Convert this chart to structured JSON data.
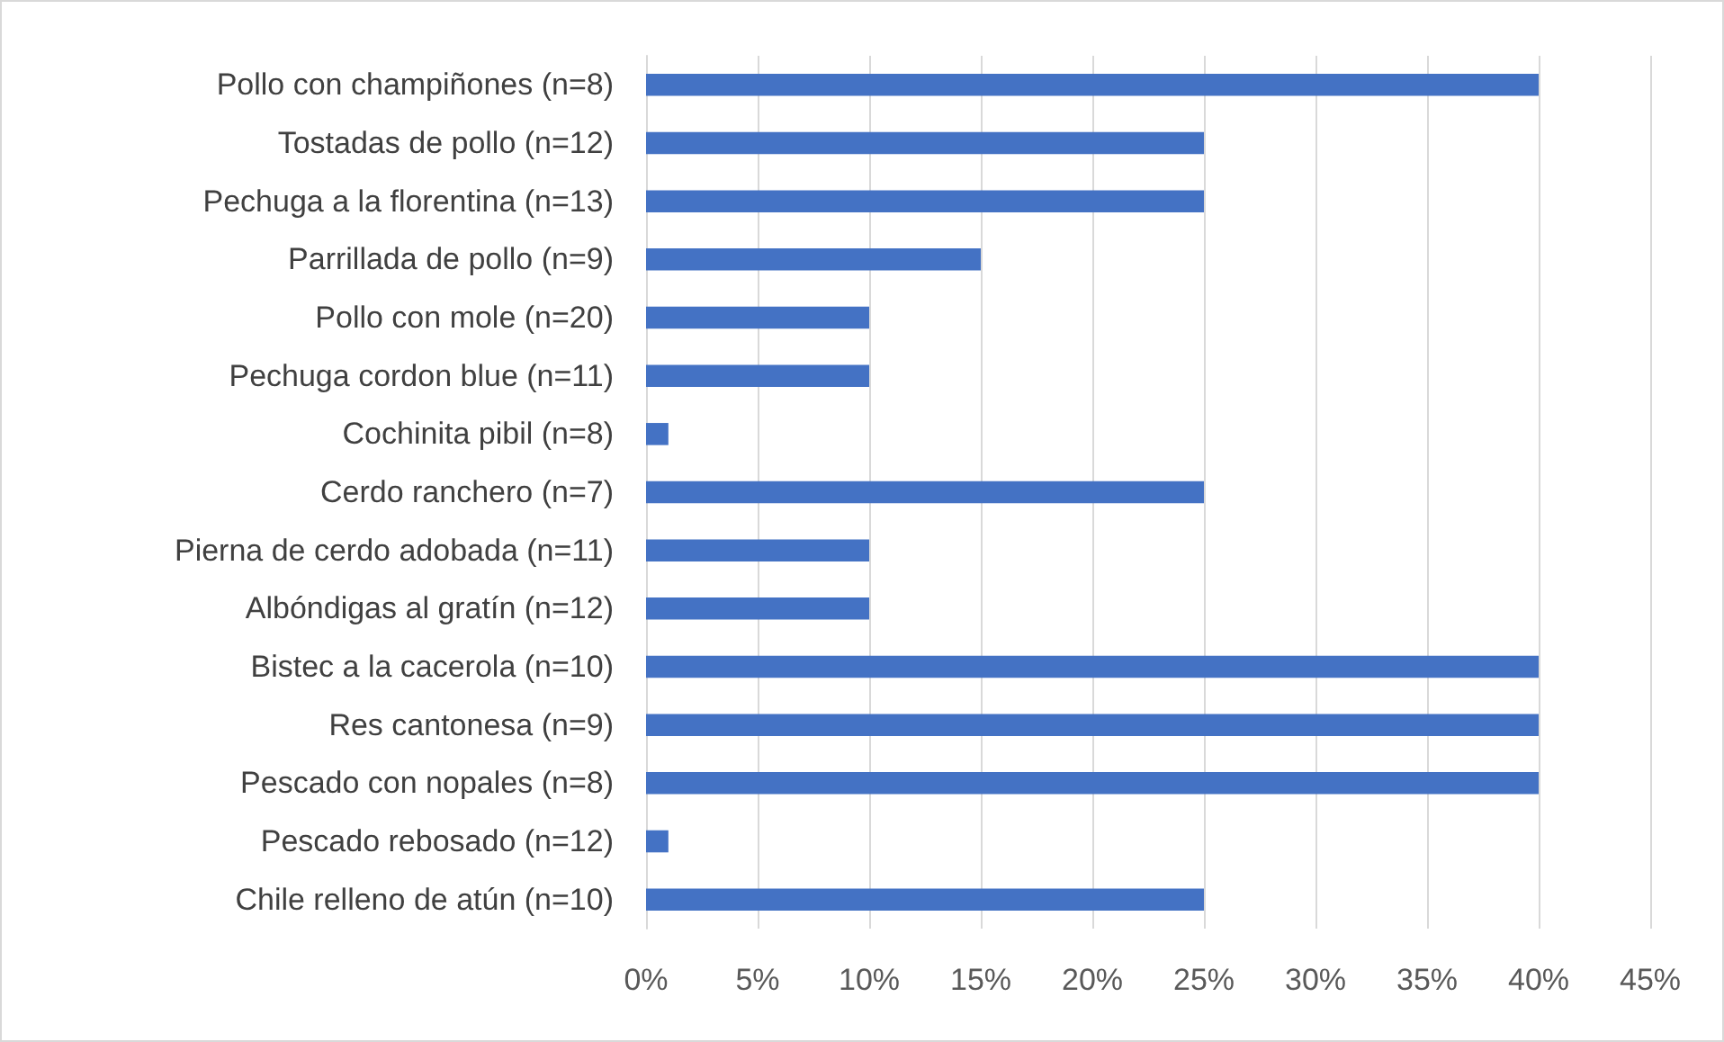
{
  "chart_data": {
    "type": "bar",
    "orientation": "horizontal",
    "categories": [
      "Pollo con champiñones (n=8)",
      "Tostadas de pollo (n=12)",
      "Pechuga a la florentina (n=13)",
      "Parrillada de pollo (n=9)",
      "Pollo con mole (n=20)",
      "Pechuga cordon blue (n=11)",
      "Cochinita pibil (n=8)",
      "Cerdo ranchero (n=7)",
      "Pierna de cerdo adobada (n=11)",
      "Albóndigas al gratín (n=12)",
      "Bistec a la cacerola (n=10)",
      "Res cantonesa (n=9)",
      "Pescado con nopales (n=8)",
      "Pescado rebosado (n=12)",
      "Chile relleno de atún (n=10)"
    ],
    "values": [
      40,
      25,
      25,
      15,
      10,
      10,
      1,
      25,
      10,
      10,
      40,
      40,
      40,
      1,
      25
    ],
    "color": "#4472c4",
    "xlim": [
      0,
      45
    ],
    "xticks": [
      {
        "value": 0,
        "label": "0%"
      },
      {
        "value": 5,
        "label": "5%"
      },
      {
        "value": 10,
        "label": "10%"
      },
      {
        "value": 15,
        "label": "15%"
      },
      {
        "value": 20,
        "label": "20%"
      },
      {
        "value": 25,
        "label": "25%"
      },
      {
        "value": 30,
        "label": "30%"
      },
      {
        "value": 35,
        "label": "35%"
      },
      {
        "value": 40,
        "label": "40%"
      },
      {
        "value": 45,
        "label": "45%"
      }
    ],
    "grid": "x"
  }
}
